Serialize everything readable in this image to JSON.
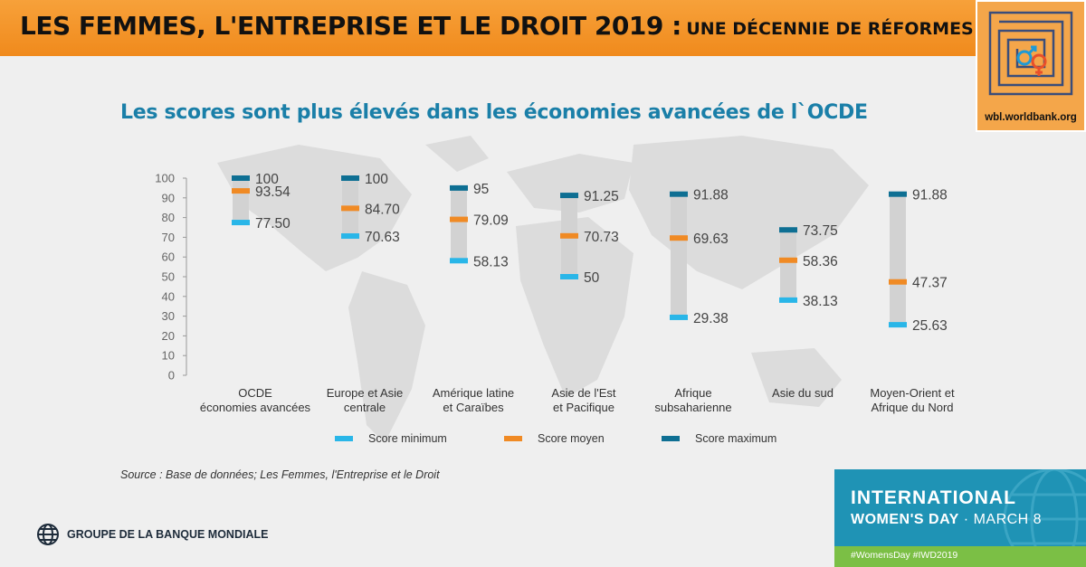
{
  "header": {
    "title": "LES FEMMES, L'ENTREPRISE ET LE DROIT 2019 :",
    "subtitle": "UNE DÉCENNIE DE RÉFORMES"
  },
  "logo": {
    "url": "wbl.worldbank.org"
  },
  "chart_title": "Les scores sont plus élevés dans les économies avancées de l`OCDE",
  "chart_data": {
    "type": "range",
    "ylim": [
      0,
      100
    ],
    "yticks": [
      0,
      10,
      20,
      30,
      40,
      50,
      60,
      70,
      80,
      90,
      100
    ],
    "categories": [
      [
        "OCDE",
        "économies avancées"
      ],
      [
        "Europe et Asie",
        "centrale"
      ],
      [
        "Amérique latine",
        "et Caraïbes"
      ],
      [
        "Asie de l'Est",
        "et Pacifique"
      ],
      [
        "Afrique",
        "subsaharienne"
      ],
      [
        "Asie du sud"
      ],
      [
        "Moyen-Orient et",
        "Afrique du Nord"
      ]
    ],
    "series": [
      {
        "name": "Score minimum",
        "color": "#29b6e8",
        "values": [
          77.5,
          70.63,
          58.13,
          50,
          29.38,
          38.13,
          25.63
        ]
      },
      {
        "name": "Score moyen",
        "color": "#f08a24",
        "values": [
          93.54,
          84.7,
          79.09,
          70.73,
          69.63,
          58.36,
          47.37
        ]
      },
      {
        "name": "Score maximum",
        "color": "#0e6f93",
        "values": [
          100,
          100,
          95,
          91.25,
          91.88,
          73.75,
          91.88
        ]
      }
    ],
    "labels": {
      "min": [
        "77.50",
        "70.63",
        "58.13",
        "50",
        "29.38",
        "38.13",
        "25.63"
      ],
      "avg": [
        "93.54",
        "84.70",
        "79.09",
        "70.73",
        "69.63",
        "58.36",
        "47.37"
      ],
      "max": [
        "100",
        "100",
        "95",
        "91.25",
        "91.88",
        "73.75",
        "91.88"
      ]
    },
    "range_color": "#d2d2d2",
    "grid": false,
    "legend_position": "bottom"
  },
  "source": "Source : Base de données; Les Femmes, l'Entreprise et le Droit",
  "footer": {
    "org": "GROUPE DE LA BANQUE MONDIALE",
    "iwd_line1": "INTERNATIONAL",
    "iwd_line2_bold": "WOMEN'S DAY",
    "iwd_line2_rest": " · MARCH 8",
    "iwd_tags": "#WomensDay   #IWD2019"
  }
}
